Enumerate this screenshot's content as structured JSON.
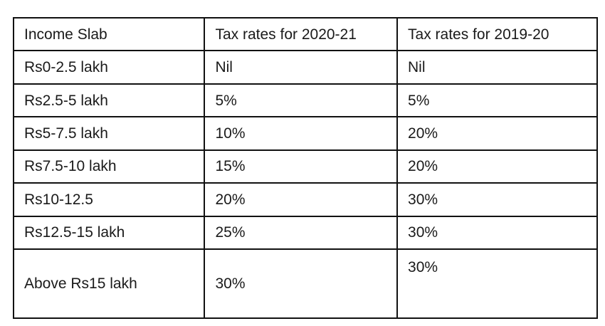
{
  "table": {
    "headers": [
      "Income Slab",
      "Tax rates for 2020-21",
      "Tax rates for 2019-20"
    ],
    "rows": [
      [
        "Rs0-2.5 lakh",
        "Nil",
        "Nil"
      ],
      [
        "Rs2.5-5 lakh",
        "5%",
        "5%"
      ],
      [
        "Rs5-7.5 lakh",
        "10%",
        "20%"
      ],
      [
        "Rs7.5-10 lakh",
        "15%",
        "20%"
      ],
      [
        "Rs10-12.5",
        "20%",
        " 30%"
      ],
      [
        "Rs12.5-15 lakh",
        "25%",
        " 30%"
      ],
      [
        "Above Rs15 lakh",
        "30%",
        "30%"
      ]
    ]
  }
}
